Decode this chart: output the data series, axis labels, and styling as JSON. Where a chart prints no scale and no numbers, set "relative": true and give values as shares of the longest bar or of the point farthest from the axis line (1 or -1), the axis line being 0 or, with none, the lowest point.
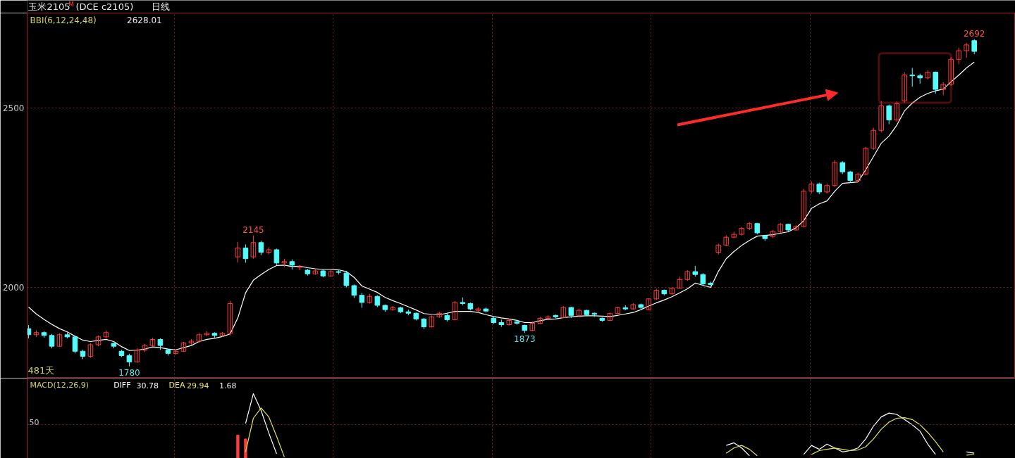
{
  "chart_data": [
    {
      "type": "candlestick",
      "title": "玉米2105$^{M}$(DCE c2105)",
      "subtitle": "日线",
      "categories": [
        null,
        null,
        null,
        null,
        null,
        null,
        null,
        null,
        null,
        null,
        null,
        null,
        null,
        null,
        null,
        null,
        null,
        null,
        null,
        null,
        null,
        null,
        null,
        null,
        null,
        null,
        null,
        null,
        null,
        null,
        null,
        null,
        null,
        null,
        null,
        null,
        null,
        null,
        null,
        null,
        null,
        null,
        null,
        null,
        null,
        null,
        null,
        null,
        null,
        null,
        null,
        null,
        null,
        null,
        null,
        null,
        null,
        null,
        null,
        null,
        null,
        null,
        null,
        null,
        null,
        null,
        null,
        null,
        null,
        null,
        null,
        null,
        null,
        null,
        null,
        null,
        null,
        null,
        null,
        null,
        null,
        null,
        null,
        null,
        null,
        null,
        null,
        null,
        null,
        null,
        null,
        null,
        null,
        null,
        null,
        null,
        null,
        null,
        null,
        null,
        null,
        null,
        null,
        null,
        null,
        null,
        null,
        null,
        null,
        null,
        null,
        null,
        null,
        null,
        null,
        null,
        null,
        null,
        null,
        null,
        null,
        null,
        null
      ],
      "ohlc": [
        [
          1885,
          1895,
          1858,
          1868
        ],
        [
          1868,
          1880,
          1862,
          1874
        ],
        [
          1874,
          1878,
          1860,
          1866
        ],
        [
          1866,
          1870,
          1830,
          1836
        ],
        [
          1836,
          1872,
          1834,
          1868
        ],
        [
          1868,
          1874,
          1858,
          1862
        ],
        [
          1862,
          1866,
          1816,
          1822
        ],
        [
          1822,
          1826,
          1800,
          1808
        ],
        [
          1808,
          1844,
          1804,
          1840
        ],
        [
          1840,
          1866,
          1836,
          1862
        ],
        [
          1862,
          1880,
          1858,
          1874
        ],
        [
          1844,
          1846,
          1830,
          1836
        ],
        [
          1822,
          1826,
          1806,
          1810
        ],
        [
          1810,
          1815,
          1780,
          1792
        ],
        [
          1792,
          1830,
          1790,
          1825
        ],
        [
          1825,
          1842,
          1820,
          1838
        ],
        [
          1838,
          1860,
          1834,
          1855
        ],
        [
          1855,
          1858,
          1826,
          1838
        ],
        [
          1826,
          1828,
          1810,
          1816
        ],
        [
          1816,
          1826,
          1812,
          1822
        ],
        [
          1822,
          1848,
          1820,
          1845
        ],
        [
          1845,
          1856,
          1840,
          1850
        ],
        [
          1850,
          1872,
          1846,
          1868
        ],
        [
          1868,
          1878,
          1864,
          1872
        ],
        [
          1872,
          1875,
          1860,
          1866
        ],
        [
          1866,
          1876,
          1862,
          1872
        ],
        [
          1872,
          1962,
          1866,
          1955
        ],
        [
          2085,
          2127,
          2070,
          2110
        ],
        [
          2110,
          2120,
          2069,
          2080
        ],
        [
          2085,
          2145,
          2080,
          2125
        ],
        [
          2125,
          2130,
          2090,
          2098
        ],
        [
          2098,
          2112,
          2092,
          2105
        ],
        [
          2105,
          2108,
          2062,
          2068
        ],
        [
          2068,
          2080,
          2058,
          2072
        ],
        [
          2072,
          2078,
          2050,
          2062
        ],
        [
          2056,
          2062,
          2048,
          2058
        ],
        [
          2048,
          2052,
          2033,
          2038
        ],
        [
          2038,
          2050,
          2035,
          2046
        ],
        [
          2046,
          2050,
          2028,
          2032
        ],
        [
          2032,
          2048,
          2030,
          2044
        ],
        [
          2044,
          2050,
          2036,
          2042
        ],
        [
          2040,
          2046,
          2000,
          2005
        ],
        [
          2005,
          2008,
          1970,
          1978
        ],
        [
          1978,
          1985,
          1943,
          1958
        ],
        [
          1958,
          1982,
          1955,
          1975
        ],
        [
          1975,
          1978,
          1945,
          1950
        ],
        [
          1950,
          1952,
          1932,
          1938
        ],
        [
          1938,
          1948,
          1935,
          1943
        ],
        [
          1943,
          1946,
          1928,
          1932
        ],
        [
          1932,
          1938,
          1922,
          1928
        ],
        [
          1928,
          1930,
          1908,
          1912
        ],
        [
          1912,
          1915,
          1884,
          1890
        ],
        [
          1890,
          1922,
          1888,
          1918
        ],
        [
          1918,
          1932,
          1915,
          1928
        ],
        [
          1922,
          1930,
          1905,
          1910
        ],
        [
          1910,
          1962,
          1908,
          1958
        ],
        [
          1958,
          1972,
          1950,
          1955
        ],
        [
          1955,
          1958,
          1936,
          1940
        ],
        [
          1936,
          1945,
          1928,
          1940
        ],
        [
          1940,
          1944,
          1930,
          1934
        ],
        [
          1914,
          1918,
          1898,
          1902
        ],
        [
          1902,
          1910,
          1890,
          1896
        ],
        [
          1896,
          1912,
          1894,
          1908
        ],
        [
          1904,
          1908,
          1896,
          1900
        ],
        [
          1894,
          1896,
          1873,
          1880
        ],
        [
          1880,
          1905,
          1878,
          1900
        ],
        [
          1900,
          1918,
          1898,
          1914
        ],
        [
          1914,
          1922,
          1910,
          1918
        ],
        [
          1922,
          1924,
          1914,
          1918
        ],
        [
          1916,
          1948,
          1914,
          1944
        ],
        [
          1944,
          1946,
          1915,
          1922
        ],
        [
          1922,
          1940,
          1918,
          1936
        ],
        [
          1936,
          1938,
          1920,
          1924
        ],
        [
          1928,
          1930,
          1918,
          1925
        ],
        [
          1914,
          1916,
          1904,
          1908
        ],
        [
          1908,
          1930,
          1906,
          1927
        ],
        [
          1927,
          1946,
          1925,
          1943
        ],
        [
          1943,
          1950,
          1936,
          1940
        ],
        [
          1940,
          1956,
          1938,
          1952
        ],
        [
          1952,
          1955,
          1940,
          1944
        ],
        [
          1938,
          1970,
          1936,
          1968
        ],
        [
          1968,
          1996,
          1965,
          1992
        ],
        [
          1992,
          1994,
          1978,
          1982
        ],
        [
          1982,
          2000,
          1980,
          1998
        ],
        [
          1998,
          2030,
          1996,
          2022
        ],
        [
          2022,
          2048,
          2018,
          2044
        ],
        [
          2044,
          2060,
          2030,
          2036
        ],
        [
          2036,
          2040,
          2004,
          2010
        ],
        [
          2012,
          2016,
          2004,
          2008
        ],
        [
          2098,
          2122,
          2092,
          2118
        ],
        [
          2118,
          2145,
          2115,
          2140
        ],
        [
          2140,
          2155,
          2138,
          2148
        ],
        [
          2148,
          2168,
          2145,
          2165
        ],
        [
          2165,
          2182,
          2160,
          2178
        ],
        [
          2178,
          2180,
          2148,
          2152
        ],
        [
          2144,
          2146,
          2130,
          2136
        ],
        [
          2142,
          2160,
          2138,
          2156
        ],
        [
          2156,
          2180,
          2152,
          2176
        ],
        [
          2176,
          2178,
          2155,
          2160
        ],
        [
          2160,
          2174,
          2158,
          2170
        ],
        [
          2170,
          2275,
          2168,
          2268
        ],
        [
          2268,
          2296,
          2262,
          2288
        ],
        [
          2288,
          2292,
          2260,
          2266
        ],
        [
          2266,
          2290,
          2262,
          2284
        ],
        [
          2284,
          2355,
          2280,
          2348
        ],
        [
          2348,
          2352,
          2316,
          2322
        ],
        [
          2322,
          2325,
          2292,
          2298
        ],
        [
          2298,
          2320,
          2294,
          2316
        ],
        [
          2316,
          2392,
          2312,
          2388
        ],
        [
          2388,
          2445,
          2384,
          2438
        ],
        [
          2438,
          2520,
          2432,
          2506
        ],
        [
          2506,
          2510,
          2455,
          2467
        ],
        [
          2467,
          2518,
          2462,
          2512
        ],
        [
          2520,
          2600,
          2515,
          2592
        ],
        [
          2592,
          2612,
          2560,
          2590
        ],
        [
          2590,
          2596,
          2568,
          2584
        ],
        [
          2584,
          2606,
          2580,
          2600
        ],
        [
          2600,
          2602,
          2540,
          2552
        ],
        [
          2552,
          2572,
          2536,
          2566
        ],
        [
          2566,
          2642,
          2562,
          2636
        ],
        [
          2636,
          2668,
          2622,
          2660
        ],
        [
          2660,
          2682,
          2640,
          2676
        ],
        [
          2688,
          2692,
          2650,
          2658
        ]
      ],
      "colors": [
        "#54fcfc",
        "#ff3c3c",
        "#54fcfc",
        "#54fcfc",
        "#ff3c3c",
        "#54fcfc",
        "#54fcfc",
        "#54fcfc",
        "#ff3c3c",
        "#ff3c3c",
        "#ff3c3c",
        "#54fcfc",
        "#54fcfc",
        "#54fcfc",
        "#ff3c3c",
        "#ff3c3c",
        "#ff3c3c",
        "#54fcfc",
        "#54fcfc",
        "#ff3c3c",
        "#ff3c3c",
        "#ff3c3c",
        "#ff3c3c",
        "#ff3c3c",
        "#54fcfc",
        "#ff3c3c",
        "#ff3c3c",
        "#ff3c3c",
        "#54fcfc",
        "#ff3c3c",
        "#54fcfc",
        "#ff3c3c",
        "#54fcfc",
        "#ff3c3c",
        "#54fcfc",
        "#ff3c3c",
        "#54fcfc",
        "#ff3c3c",
        "#54fcfc",
        "#ff3c3c",
        "#54fcfc",
        "#54fcfc",
        "#54fcfc",
        "#54fcfc",
        "#ff3c3c",
        "#54fcfc",
        "#54fcfc",
        "#ff3c3c",
        "#54fcfc",
        "#54fcfc",
        "#54fcfc",
        "#54fcfc",
        "#ff3c3c",
        "#ff3c3c",
        "#54fcfc",
        "#ff3c3c",
        "#54fcfc",
        "#54fcfc",
        "#ff3c3c",
        "#54fcfc",
        "#54fcfc",
        "#54fcfc",
        "#ff3c3c",
        "#54fcfc",
        "#54fcfc",
        "#ff3c3c",
        "#ff3c3c",
        "#ff3c3c",
        "#54fcfc",
        "#ff3c3c",
        "#54fcfc",
        "#ff3c3c",
        "#54fcfc",
        "#54fcfc",
        "#54fcfc",
        "#ff3c3c",
        "#ff3c3c",
        "#54fcfc",
        "#ff3c3c",
        "#54fcfc",
        "#ff3c3c",
        "#ff3c3c",
        "#54fcfc",
        "#ff3c3c",
        "#ff3c3c",
        "#ff3c3c",
        "#54fcfc",
        "#54fcfc",
        "#54fcfc",
        "#ff3c3c",
        "#ff3c3c",
        "#ff3c3c",
        "#ff3c3c",
        "#ff3c3c",
        "#54fcfc",
        "#54fcfc",
        "#ff3c3c",
        "#ff3c3c",
        "#54fcfc",
        "#ff3c3c",
        "#ff3c3c",
        "#ff3c3c",
        "#54fcfc",
        "#ff3c3c",
        "#ff3c3c",
        "#54fcfc",
        "#54fcfc",
        "#ff3c3c",
        "#ff3c3c",
        "#ff3c3c",
        "#ff3c3c",
        "#54fcfc",
        "#ff3c3c",
        "#ff3c3c",
        "#54fcfc",
        "#54fcfc",
        "#ff3c3c",
        "#54fcfc",
        "#ff3c3c",
        "#ff3c3c",
        "#ff3c3c",
        "#ff3c3c",
        "#54fcfc"
      ],
      "series": [
        {
          "type": "line",
          "color": "#ffffff",
          "values": [
            1945,
            1926,
            1911,
            1897,
            1885,
            1876,
            1864,
            1853,
            1849,
            1852,
            1855,
            1849,
            1835,
            1824,
            1825,
            1828,
            1834,
            1832,
            1828,
            1826,
            1832,
            1838,
            1849,
            1855,
            1858,
            1863,
            1870,
            1915,
            1985,
            2020,
            2036,
            2050,
            2061,
            2062,
            2058,
            2059,
            2055,
            2052,
            2050,
            2050,
            2049,
            2044,
            2028,
            2004,
            1995,
            1986,
            1972,
            1963,
            1955,
            1946,
            1937,
            1927,
            1925,
            1924,
            1928,
            1933,
            1933,
            1933,
            1930,
            1924,
            1919,
            1915,
            1912,
            1908,
            1902,
            1902,
            1907,
            1911,
            1912,
            1916,
            1918,
            1920,
            1921,
            1921,
            1920,
            1919,
            1922,
            1926,
            1930,
            1938,
            1948,
            1957,
            1965,
            1974,
            1985,
            1996,
            2012,
            2006,
            2000,
            2045,
            2080,
            2100,
            2117,
            2131,
            2143,
            2145,
            2147,
            2151,
            2155,
            2166,
            2186,
            2220,
            2233,
            2241,
            2268,
            2290,
            2292,
            2294,
            2328,
            2365,
            2402,
            2422,
            2452,
            2492,
            2514,
            2530,
            2541,
            2548,
            2553,
            2573,
            2592,
            2612,
            2628
          ]
        }
      ],
      "ylim": [
        1747,
        2765
      ],
      "yticks": [
        2000,
        2500
      ],
      "grid": "y",
      "tick_labels": "y",
      "annotations": [
        "BBI(6,12,24,48)",
        "2628.01",
        {
          "text": "2145",
          "y": 2145
        },
        {
          "text": "1780",
          "y": 1780
        },
        {
          "text": "1873",
          "y": 1873
        },
        {
          "text": "2692",
          "y": 2692
        },
        "481天"
      ]
    },
    {
      "type": "line",
      "title": "MACD(12,26,9)",
      "categories": [
        null,
        null,
        null,
        null,
        null,
        null,
        null,
        null,
        null,
        null,
        null,
        null,
        null,
        null,
        null,
        null,
        null,
        null,
        null,
        null,
        null,
        null,
        null,
        null,
        null,
        null,
        null,
        null,
        null,
        null,
        null,
        null,
        null,
        null,
        null,
        null,
        null,
        null,
        null,
        null,
        null,
        null,
        null,
        null,
        null,
        null,
        null,
        null,
        null,
        null,
        null,
        null,
        null,
        null,
        null,
        null,
        null,
        null,
        null,
        null,
        null,
        null,
        null,
        null,
        null,
        null,
        null,
        null,
        null,
        null,
        null,
        null,
        null,
        null,
        null,
        null,
        null,
        null,
        null,
        null,
        null,
        null,
        null,
        null,
        null,
        null,
        null,
        null,
        null,
        null,
        null,
        null,
        null,
        null,
        null,
        null,
        null,
        null,
        null,
        null,
        null,
        null,
        null,
        null,
        null,
        null,
        null,
        null,
        null,
        null,
        null,
        null,
        null,
        null,
        null,
        null,
        null,
        null,
        null,
        null,
        null,
        null,
        null
      ],
      "relative": true,
      "tick_labels": false,
      "series": [
        {
          "name": "DIFF",
          "color": "#ffffff",
          "values": [
            null,
            null,
            null,
            null,
            null,
            null,
            null,
            null,
            null,
            null,
            null,
            null,
            null,
            null,
            null,
            null,
            null,
            null,
            null,
            null,
            null,
            null,
            null,
            null,
            null,
            null,
            null,
            null,
            0.54,
            1.0,
            0.74,
            0.39,
            0.07,
            null,
            null,
            null,
            null,
            null,
            null,
            null,
            null,
            null,
            null,
            null,
            null,
            null,
            null,
            null,
            null,
            null,
            null,
            null,
            null,
            null,
            null,
            null,
            null,
            null,
            null,
            null,
            null,
            null,
            null,
            null,
            null,
            null,
            null,
            null,
            null,
            null,
            null,
            null,
            null,
            null,
            null,
            null,
            null,
            null,
            null,
            null,
            null,
            null,
            null,
            null,
            null,
            null,
            null,
            null,
            null,
            null,
            0.2,
            0.24,
            0.16,
            0.04,
            null,
            null,
            null,
            null,
            null,
            null,
            0.06,
            0.2,
            0.14,
            0.22,
            0.16,
            0.1,
            0.12,
            0.16,
            0.3,
            0.5,
            0.64,
            0.7,
            0.68,
            0.6,
            0.52,
            0.42,
            0.22,
            0.06,
            null,
            null,
            null,
            0.1,
            0.08
          ]
        },
        {
          "name": "DEA",
          "color": "#e6e650",
          "values": [
            null,
            null,
            null,
            null,
            null,
            null,
            null,
            null,
            null,
            null,
            null,
            null,
            null,
            null,
            null,
            null,
            null,
            null,
            null,
            null,
            null,
            null,
            null,
            null,
            null,
            null,
            null,
            null,
            0.1,
            0.62,
            0.78,
            0.64,
            0.34,
            0.02,
            null,
            null,
            null,
            null,
            null,
            null,
            null,
            null,
            null,
            null,
            null,
            null,
            null,
            null,
            null,
            null,
            null,
            null,
            null,
            null,
            null,
            null,
            null,
            null,
            null,
            null,
            null,
            null,
            null,
            null,
            null,
            null,
            null,
            null,
            null,
            null,
            null,
            null,
            null,
            null,
            null,
            null,
            null,
            null,
            null,
            null,
            null,
            null,
            null,
            null,
            null,
            null,
            null,
            null,
            null,
            null,
            0.08,
            0.16,
            0.2,
            0.14,
            0.04,
            null,
            null,
            null,
            null,
            null,
            null,
            0.06,
            0.12,
            0.14,
            0.16,
            0.14,
            0.12,
            0.13,
            0.18,
            0.3,
            0.45,
            0.56,
            0.62,
            0.63,
            0.6,
            0.52,
            0.4,
            0.26,
            0.1,
            null,
            null,
            0.05,
            0.06
          ]
        },
        {
          "type": "bar",
          "color": "#ff3c3c",
          "values": [
            null,
            null,
            null,
            null,
            null,
            null,
            null,
            null,
            null,
            null,
            null,
            null,
            null,
            null,
            null,
            null,
            null,
            null,
            null,
            null,
            null,
            null,
            null,
            null,
            null,
            null,
            null,
            0.36,
            0.3,
            null,
            null,
            null,
            null,
            null,
            null,
            null,
            null,
            null,
            null,
            null,
            null,
            null,
            null,
            null,
            null,
            null,
            null,
            null,
            null,
            null,
            null,
            null,
            null,
            null,
            null,
            null,
            null,
            null,
            null,
            null,
            null,
            null,
            null,
            null,
            null,
            null,
            null,
            null,
            null,
            null,
            null,
            null,
            null,
            null,
            null,
            null,
            null,
            null,
            null,
            null,
            null,
            null,
            null,
            null,
            null,
            null,
            null,
            null,
            null,
            null,
            null,
            null,
            null,
            null,
            null,
            null,
            null,
            null,
            null,
            null,
            null,
            null,
            null,
            null,
            null,
            null,
            null,
            null,
            null,
            null,
            null,
            null,
            null,
            null,
            null,
            null,
            null,
            null,
            null,
            null,
            null,
            null,
            null
          ]
        }
      ],
      "annotations": [
        "30.78",
        "29.94",
        "1.68",
        "50"
      ]
    }
  ]
}
